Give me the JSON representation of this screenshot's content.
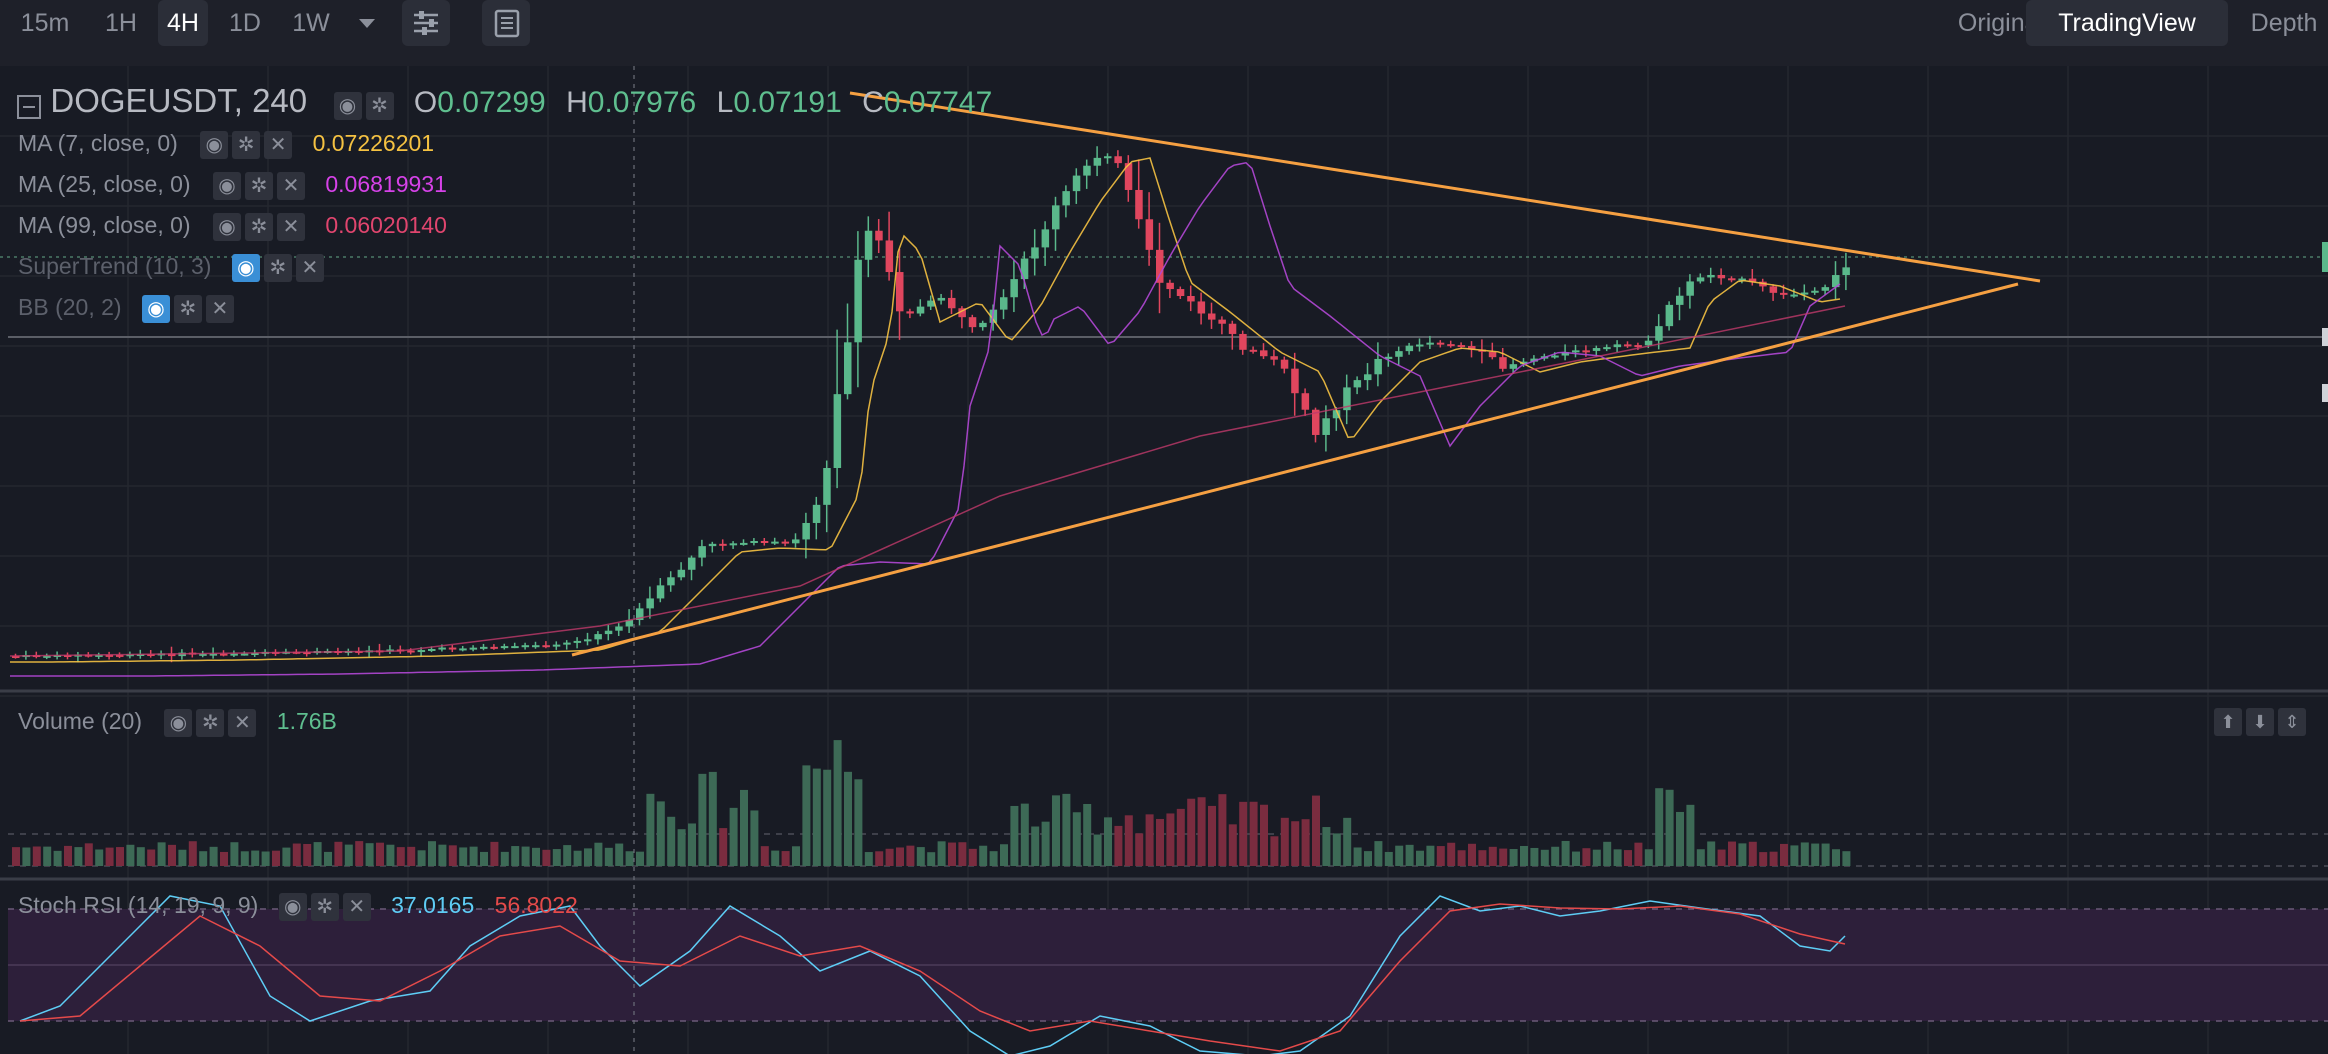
{
  "toolbar": {
    "intervals": [
      "15m",
      "1H",
      "4H",
      "1D",
      "1W"
    ],
    "active_interval": "4H",
    "views": [
      "Original",
      "TradingView",
      "Depth"
    ],
    "active_view": "TradingView"
  },
  "legend": {
    "symbol": "DOGEUSDT, 240",
    "open_label": "O",
    "open": "0.07299",
    "high_label": "H",
    "high": "0.07976",
    "low_label": "L",
    "low": "0.07191",
    "close_label": "C",
    "close": "0.07747",
    "indicators": [
      {
        "label": "MA (7, close, 0)",
        "value": "0.07226201",
        "color": "#f5c242"
      },
      {
        "label": "MA (25, close, 0)",
        "value": "0.06819931",
        "color": "#d642e8"
      },
      {
        "label": "MA (99, close, 0)",
        "value": "0.06020140",
        "color": "#e0456e"
      },
      {
        "label": "SuperTrend (10, 3)",
        "value": ""
      },
      {
        "label": "BB (20, 2)",
        "value": ""
      }
    ]
  },
  "volume": {
    "label": "Volume (20)",
    "value": "1.76B"
  },
  "stoch": {
    "label": "Stoch RSI (14, 19, 9, 9)",
    "k": "37.0165",
    "d": "56.8022",
    "k_color": "#5ecdf5",
    "d_color": "#e44a4a"
  },
  "colors": {
    "up": "#5ab88b",
    "down": "#e0465e",
    "bg": "#181b24",
    "trend": "#f5a042"
  },
  "icons": [
    "chevron-down-icon",
    "settings-sliders-icon",
    "document-list-icon",
    "eye-icon",
    "gear-icon",
    "close-icon",
    "collapse-icon",
    "arrow-up-icon",
    "arrow-down-icon",
    "resize-icon"
  ]
}
